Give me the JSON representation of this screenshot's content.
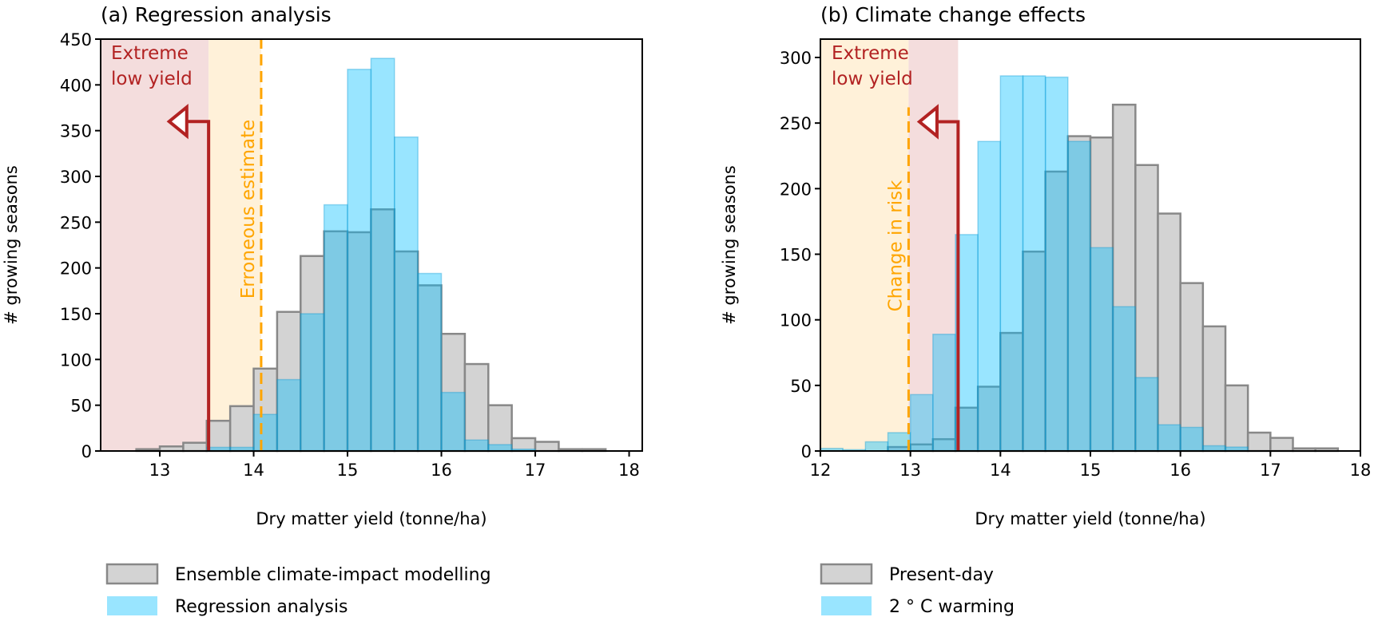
{
  "colors": {
    "extreme_zone": "#f4dddd",
    "change_zone": "#fff1d9",
    "threshold_line": "#b22222",
    "dashed_line": "#ffa500",
    "grey_fill": "#d3d3d3",
    "grey_edge": "#888888",
    "blue_fill": "rgba(0,191,255,0.4)"
  },
  "chart_data": [
    {
      "type": "histogram",
      "title": "(a) Regression analysis",
      "xlabel": "Dry matter yield (tonne/ha)",
      "ylabel": "# growing seasons",
      "xlim": [
        12.37,
        18.14
      ],
      "ylim": [
        0,
        450
      ],
      "xticks": [
        13,
        14,
        15,
        16,
        17,
        18
      ],
      "yticks": [
        0,
        50,
        100,
        150,
        200,
        250,
        300,
        350,
        400,
        450
      ],
      "grid": false,
      "legend_placement": "below",
      "bin_width": 0.25,
      "series": [
        {
          "name": "Ensemble climate-impact modelling",
          "style": "grey",
          "bins_start": 12.75,
          "values": [
            2,
            5,
            9,
            33,
            49,
            90,
            152,
            213,
            240,
            239,
            264,
            218,
            181,
            128,
            95,
            50,
            14,
            10,
            2,
            2
          ]
        },
        {
          "name": "Regression analysis",
          "style": "blue",
          "bins_start": 13.5,
          "values": [
            4,
            4,
            40,
            78,
            150,
            269,
            417,
            429,
            343,
            194,
            64,
            12,
            7,
            2
          ]
        }
      ],
      "annotations": {
        "extreme_label": [
          "Extreme",
          "low yield"
        ],
        "threshold_x": 13.52,
        "arrow_tip_x": 13.1,
        "arrow_y": 360,
        "dashed_x": 14.08,
        "dashed_top": 450,
        "dashed_label": "Erroneous estimate"
      }
    },
    {
      "type": "histogram",
      "title": "(b) Climate change effects",
      "xlabel": "Dry matter yield (tonne/ha)",
      "ylabel": "# growing seasons",
      "xlim": [
        12,
        18
      ],
      "ylim": [
        0,
        314
      ],
      "xticks": [
        12,
        13,
        14,
        15,
        16,
        17,
        18
      ],
      "yticks": [
        0,
        50,
        100,
        150,
        200,
        250,
        300
      ],
      "grid": false,
      "legend_placement": "below",
      "bin_width": 0.25,
      "series": [
        {
          "name": "Present-day",
          "style": "grey",
          "bins_start": 12.75,
          "values": [
            3,
            5,
            9,
            33,
            49,
            90,
            152,
            213,
            240,
            239,
            264,
            218,
            181,
            128,
            95,
            50,
            14,
            10,
            2,
            2
          ]
        },
        {
          "name": "2$^\\circ$C warming",
          "display_name": "2 ° C warming",
          "style": "blue",
          "bins_start": 12.0,
          "values": [
            2,
            1,
            7,
            14,
            43,
            89,
            165,
            236,
            286,
            286,
            285,
            236,
            155,
            110,
            56,
            20,
            18,
            4,
            3
          ]
        }
      ],
      "annotations": {
        "extreme_label": [
          "Extreme",
          "low yield"
        ],
        "threshold_x": 13.53,
        "arrow_tip_x": 13.1,
        "arrow_y": 251,
        "dashed_x": 12.98,
        "dashed_top": 262,
        "dashed_label": "Change in risk"
      }
    }
  ],
  "legend": {
    "a": [
      "Ensemble climate-impact modelling",
      "Regression analysis"
    ],
    "b": [
      "Present-day",
      "2 ° C warming"
    ]
  }
}
